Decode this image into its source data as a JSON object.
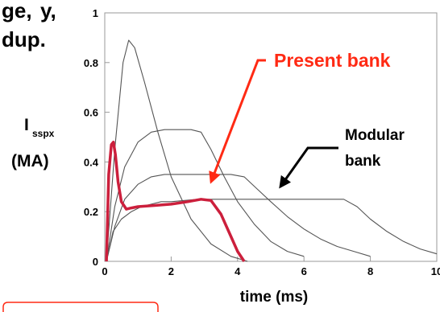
{
  "header_fragments": {
    "line1": "ge,",
    "line1b": "y,",
    "line2": "dup."
  },
  "chart_data": {
    "type": "line",
    "xlabel": "time (ms)",
    "ylabel_main": "I",
    "ylabel_sub": "sspx",
    "ylabel_unit": "(MA)",
    "xlim": [
      0,
      10
    ],
    "ylim": [
      0,
      1
    ],
    "x_ticks": [
      "0",
      "2",
      "4",
      "6",
      "8",
      "10"
    ],
    "y_ticks": [
      "0",
      "0.2",
      "0.4",
      "0.6",
      "0.8",
      "1"
    ],
    "grid": false,
    "highlight_color": "#cc1f3c",
    "trace_color": "#555555",
    "annotations": {
      "present_bank": {
        "text": "Present bank",
        "color": "#ff2a14"
      },
      "modular_bank": {
        "line1": "Modular",
        "line2": "bank",
        "color": "#000000"
      }
    },
    "series": [
      {
        "highlight": false,
        "x": [
          0.05,
          0.3,
          0.55,
          0.72,
          0.9,
          1.2,
          1.6,
          2.0,
          2.6,
          3.2,
          3.8,
          4.3
        ],
        "y": [
          0,
          0.45,
          0.8,
          0.89,
          0.86,
          0.72,
          0.52,
          0.34,
          0.17,
          0.07,
          0.02,
          0
        ]
      },
      {
        "highlight": false,
        "x": [
          0.05,
          0.3,
          0.6,
          1.0,
          1.4,
          1.8,
          2.2,
          2.6,
          2.9,
          3.2,
          3.6,
          4.0,
          4.5,
          5.0,
          5.5,
          6.0
        ],
        "y": [
          0,
          0.22,
          0.38,
          0.48,
          0.52,
          0.53,
          0.53,
          0.53,
          0.52,
          0.45,
          0.34,
          0.24,
          0.15,
          0.08,
          0.04,
          0.02
        ]
      },
      {
        "highlight": false,
        "x": [
          0.05,
          0.3,
          0.6,
          1.0,
          1.4,
          1.8,
          2.2,
          2.6,
          3.0,
          3.4,
          3.8,
          4.2,
          4.6,
          5.0,
          5.5,
          6.0,
          6.5,
          7.0,
          7.5,
          8.0
        ],
        "y": [
          0,
          0.14,
          0.25,
          0.31,
          0.34,
          0.35,
          0.35,
          0.35,
          0.35,
          0.35,
          0.35,
          0.34,
          0.29,
          0.24,
          0.18,
          0.13,
          0.09,
          0.06,
          0.04,
          0.02
        ]
      },
      {
        "highlight": false,
        "x": [
          0.05,
          0.25,
          0.5,
          0.8,
          1.1,
          1.4,
          1.7,
          2.0,
          2.4,
          2.8,
          3.2,
          3.6,
          4.0,
          4.4,
          4.8,
          5.2,
          5.6,
          6.0,
          6.4,
          6.8,
          7.2,
          7.6,
          8.0,
          8.5,
          9.0,
          9.5,
          10.0
        ],
        "y": [
          0,
          0.12,
          0.17,
          0.2,
          0.22,
          0.23,
          0.24,
          0.24,
          0.245,
          0.25,
          0.25,
          0.25,
          0.25,
          0.25,
          0.25,
          0.25,
          0.25,
          0.25,
          0.25,
          0.25,
          0.25,
          0.22,
          0.17,
          0.12,
          0.08,
          0.05,
          0.03
        ]
      },
      {
        "highlight": true,
        "x": [
          0.05,
          0.12,
          0.2,
          0.26,
          0.32,
          0.4,
          0.5,
          0.65,
          0.8,
          1.0,
          1.5,
          2.0,
          2.5,
          2.9,
          3.2,
          3.5,
          3.8,
          4.0,
          4.2
        ],
        "y": [
          0,
          0.35,
          0.47,
          0.48,
          0.43,
          0.32,
          0.24,
          0.21,
          0.215,
          0.22,
          0.225,
          0.23,
          0.24,
          0.25,
          0.245,
          0.19,
          0.1,
          0.04,
          0
        ]
      }
    ]
  }
}
